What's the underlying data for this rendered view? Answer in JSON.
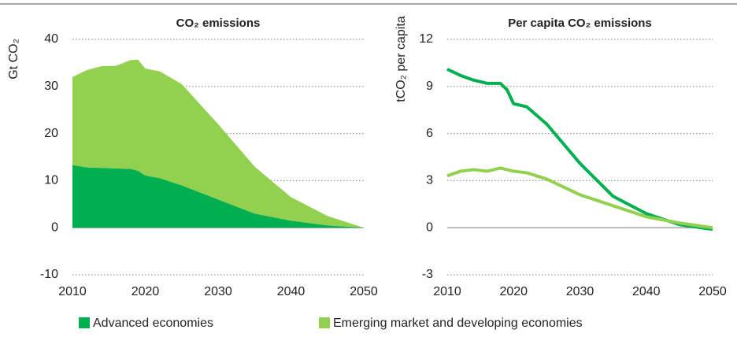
{
  "chart_data": [
    {
      "type": "area",
      "stacked": true,
      "title": "CO₂ emissions",
      "y_label": "Gt CO₂",
      "x": [
        2010,
        2012,
        2014,
        2016,
        2018,
        2019,
        2020,
        2022,
        2025,
        2030,
        2035,
        2040,
        2045,
        2050
      ],
      "series": [
        {
          "name": "Advanced economies",
          "color": "#00b050",
          "values": [
            13.3,
            12.8,
            12.7,
            12.6,
            12.5,
            12.1,
            11.1,
            10.5,
            9.0,
            6.0,
            3.0,
            1.5,
            0.5,
            0
          ]
        },
        {
          "name": "Emerging market and developing economies",
          "color": "#92d050",
          "values": [
            18.7,
            20.7,
            21.6,
            21.8,
            23.1,
            23.6,
            22.7,
            22.7,
            21.5,
            16,
            10,
            5,
            2,
            0
          ]
        }
      ],
      "xlim": [
        2010,
        2050
      ],
      "xticks": [
        2010,
        2020,
        2030,
        2040,
        2050
      ],
      "ylim": [
        -10,
        40
      ],
      "yticks": [
        -10,
        0,
        10,
        20,
        30,
        40
      ],
      "grid": true
    },
    {
      "type": "line",
      "title": "Per capita CO₂ emissions",
      "y_label": "tCO₂ per capita",
      "x": [
        2010,
        2012,
        2014,
        2016,
        2018,
        2019,
        2020,
        2022,
        2025,
        2030,
        2035,
        2040,
        2045,
        2050
      ],
      "series": [
        {
          "color": "#00b050",
          "values": [
            10.1,
            9.7,
            9.4,
            9.2,
            9.2,
            8.8,
            7.9,
            7.7,
            6.6,
            4.1,
            2.0,
            0.9,
            0.2,
            -0.1
          ]
        },
        {
          "color": "#92d050",
          "values": [
            3.3,
            3.6,
            3.7,
            3.6,
            3.8,
            3.7,
            3.6,
            3.5,
            3.1,
            2.1,
            1.4,
            0.7,
            0.3,
            0.0
          ]
        }
      ],
      "xlim": [
        2010,
        2050
      ],
      "xticks": [
        2010,
        2020,
        2030,
        2040,
        2050
      ],
      "ylim": [
        -3,
        12
      ],
      "yticks": [
        -3,
        0,
        3,
        6,
        9,
        12
      ],
      "grid": true
    }
  ]
}
